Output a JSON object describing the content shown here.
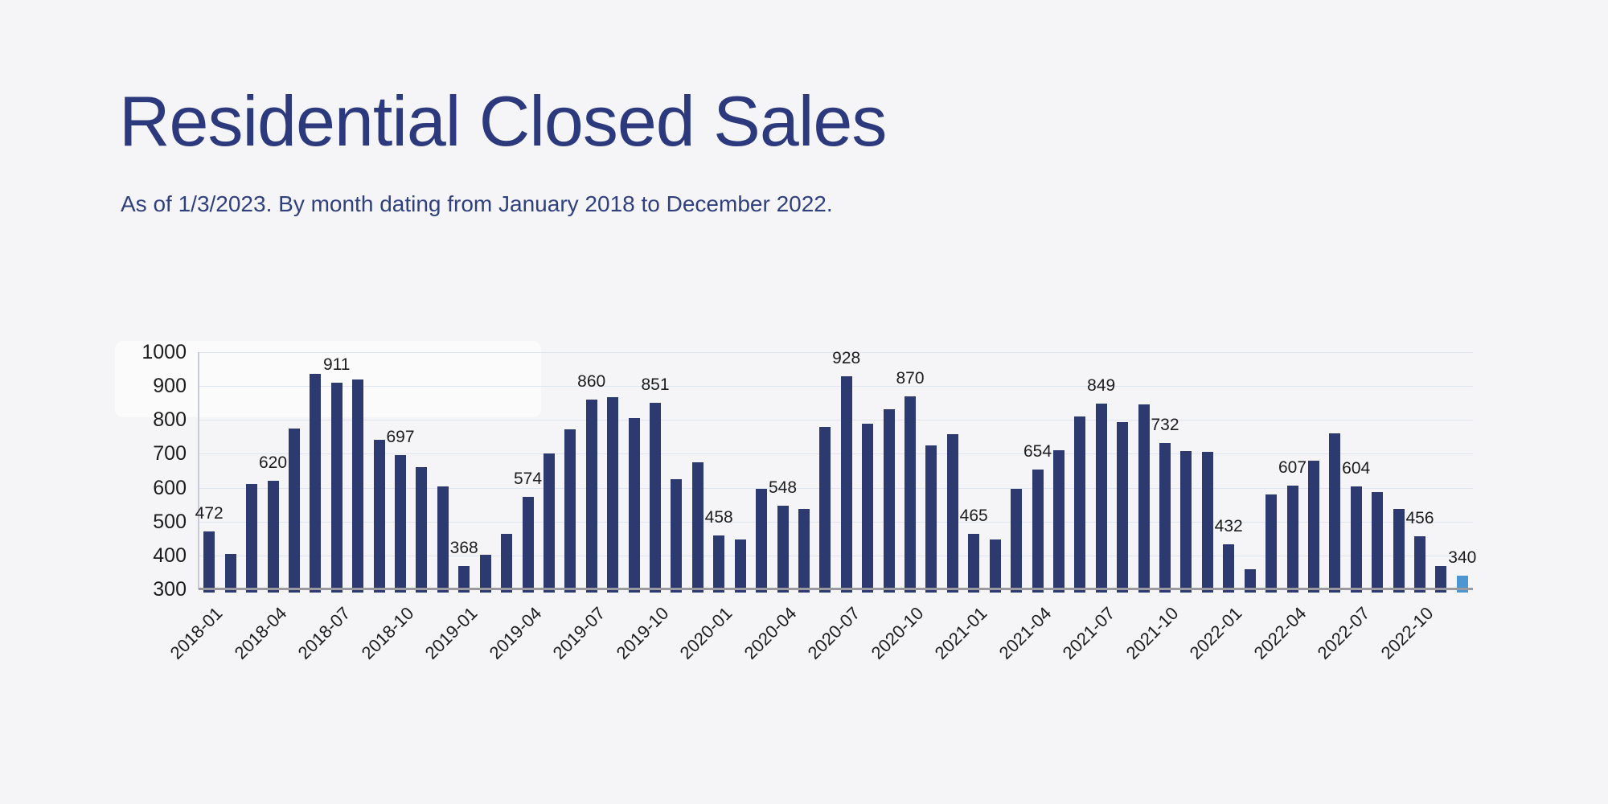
{
  "page": {
    "background": "#f5f5f7"
  },
  "header": {
    "title": "Residential Closed Sales",
    "subtitle": "As of 1/3/2023. By month dating from January 2018 to December 2022."
  },
  "chart_data": {
    "type": "bar",
    "title": "Residential Closed Sales",
    "subtitle": "As of 1/3/2023. By month dating from January 2018 to December 2022.",
    "xlabel": "",
    "ylabel": "",
    "ylim": [
      300,
      1000
    ],
    "y_ticks": [
      300,
      400,
      500,
      600,
      700,
      800,
      900,
      1000
    ],
    "grid": true,
    "legend": "none",
    "x": [
      "2018-01",
      "2018-02",
      "2018-03",
      "2018-04",
      "2018-05",
      "2018-06",
      "2018-07",
      "2018-08",
      "2018-09",
      "2018-10",
      "2018-11",
      "2018-12",
      "2019-01",
      "2019-02",
      "2019-03",
      "2019-04",
      "2019-05",
      "2019-06",
      "2019-07",
      "2019-08",
      "2019-09",
      "2019-10",
      "2019-11",
      "2019-12",
      "2020-01",
      "2020-02",
      "2020-03",
      "2020-04",
      "2020-05",
      "2020-06",
      "2020-07",
      "2020-08",
      "2020-09",
      "2020-10",
      "2020-11",
      "2020-12",
      "2021-01",
      "2021-02",
      "2021-03",
      "2021-04",
      "2021-05",
      "2021-06",
      "2021-07",
      "2021-08",
      "2021-09",
      "2021-10",
      "2021-11",
      "2021-12",
      "2022-01",
      "2022-02",
      "2022-03",
      "2022-04",
      "2022-05",
      "2022-06",
      "2022-07",
      "2022-08",
      "2022-09",
      "2022-10",
      "2022-11",
      "2022-12"
    ],
    "values": [
      472,
      405,
      612,
      620,
      775,
      935,
      911,
      919,
      741,
      697,
      661,
      605,
      368,
      402,
      464,
      574,
      702,
      773,
      860,
      868,
      805,
      851,
      625,
      675,
      458,
      448,
      596,
      548,
      538,
      780,
      928,
      790,
      831,
      870,
      725,
      757,
      465,
      448,
      597,
      654,
      710,
      810,
      849,
      793,
      845,
      732,
      708,
      706,
      432,
      360,
      580,
      607,
      680,
      760,
      604,
      588,
      538,
      456,
      368,
      340
    ],
    "value_label_every": 3,
    "value_label_last": true,
    "x_tick_every": 3,
    "x_tick_labels": [
      "2018-01",
      "2018-04",
      "2018-07",
      "2018-10",
      "2019-01",
      "2019-04",
      "2019-07",
      "2019-10",
      "2020-01",
      "2020-04",
      "2020-07",
      "2020-10",
      "2021-01",
      "2021-04",
      "2021-07",
      "2021-10",
      "2022-01",
      "2022-04",
      "2022-07",
      "2022-10"
    ],
    "labeled_values": [
      472,
      620,
      911,
      697,
      368,
      574,
      860,
      851,
      458,
      548,
      928,
      870,
      465,
      654,
      849,
      732,
      432,
      607,
      604,
      456,
      340
    ],
    "highlight_index": 59,
    "bar_color": "#2d3a70",
    "highlight_color": "#4e96d2",
    "grid_color": "#dfe4f1",
    "axis_line_color": "#c7cbd6",
    "baseline_color": "#9a9aa0",
    "label_color": "#1c1c1c",
    "title_color": "#2c3a7d"
  }
}
